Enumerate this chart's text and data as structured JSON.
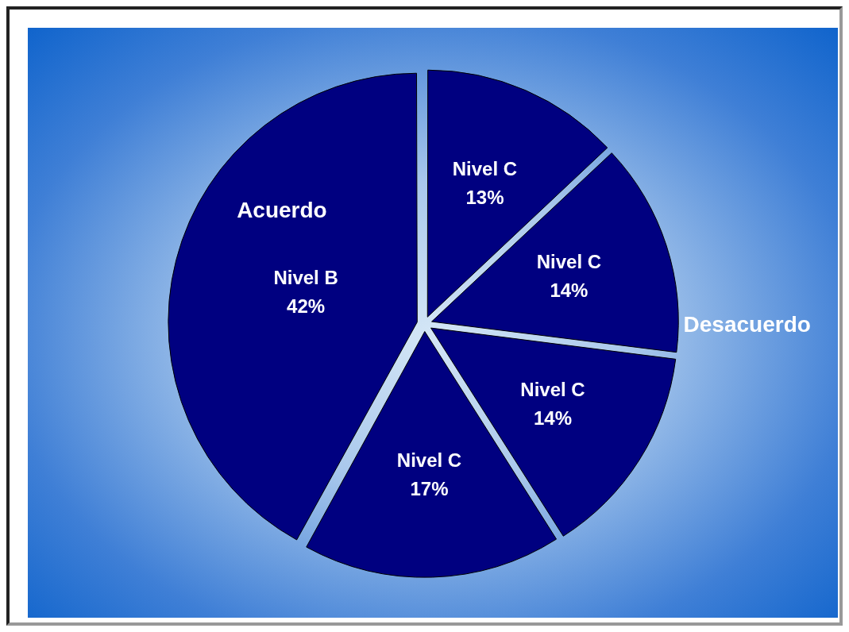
{
  "chart_data": {
    "type": "pie",
    "categories": [
      "Nivel C",
      "Nivel C",
      "Nivel C",
      "Nivel C",
      "Nivel B"
    ],
    "values": [
      13,
      14,
      14,
      17,
      42
    ],
    "value_labels": [
      "13%",
      "14%",
      "14%",
      "17%",
      "42%"
    ],
    "colors": [
      "#000080",
      "#000080",
      "#000080",
      "#000080",
      "#000080"
    ],
    "annotations": [
      "Acuerdo",
      "Desacuerdo"
    ],
    "legend": false
  }
}
